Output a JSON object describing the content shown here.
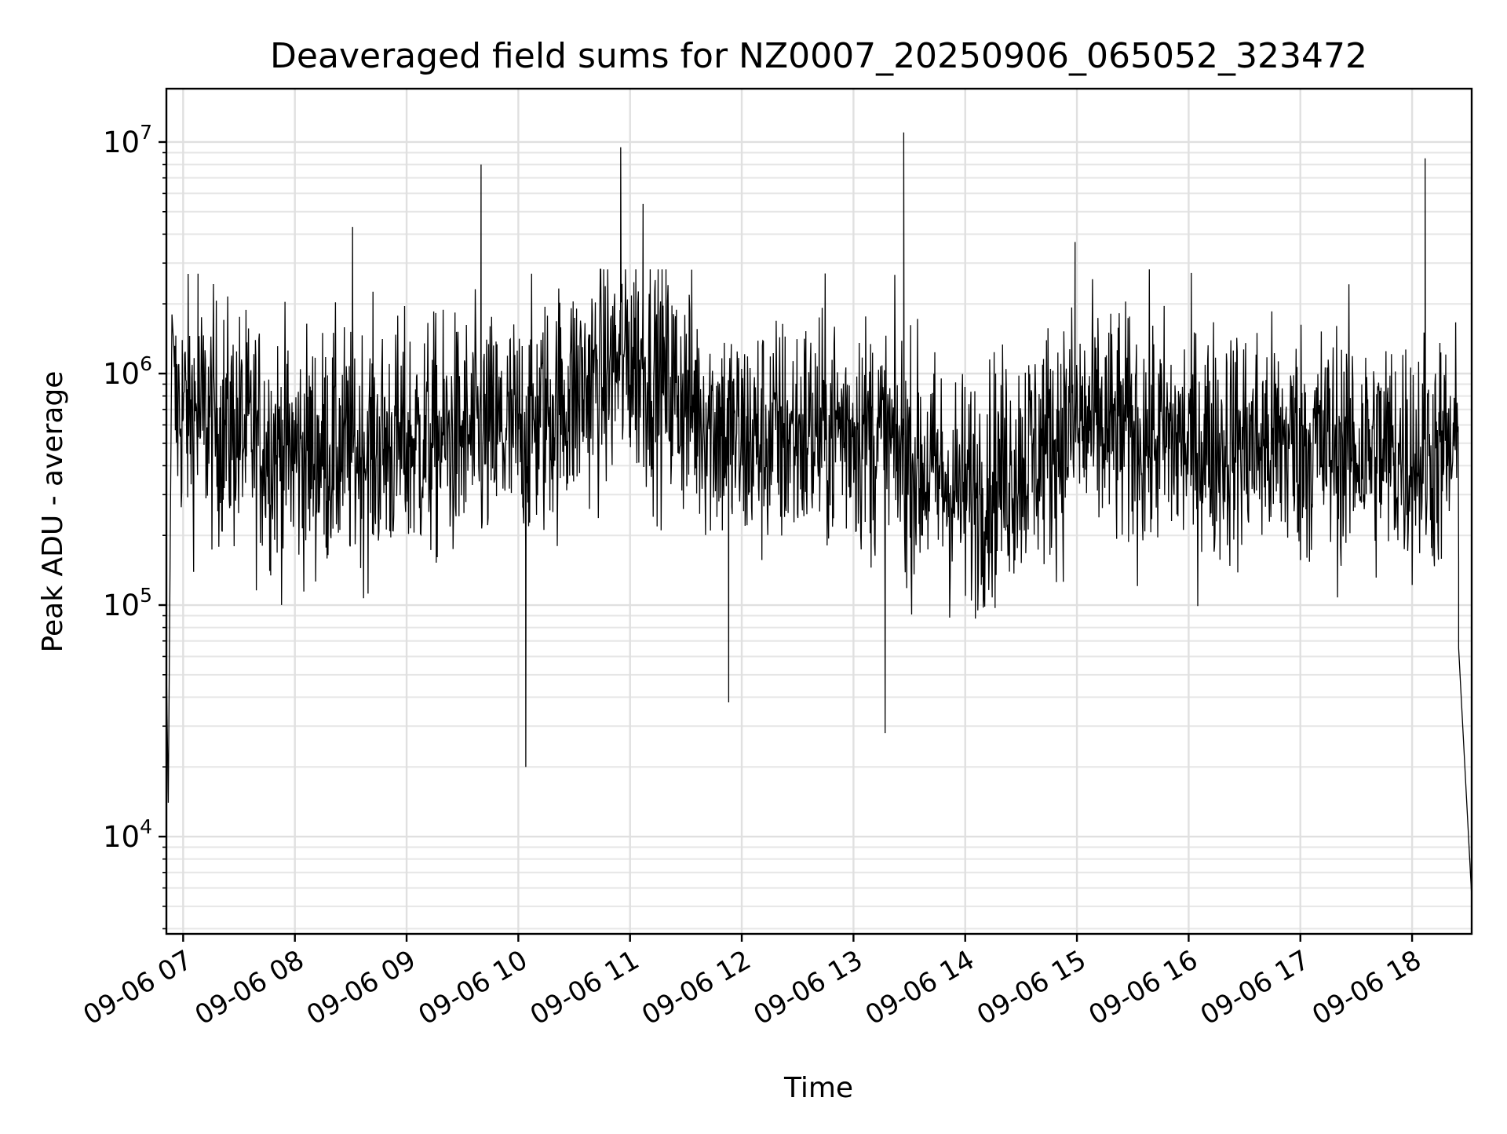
{
  "chart_data": {
    "type": "line",
    "title": "Deaveraged field sums for NZ0007_20250906_065052_323472",
    "xlabel": "Time",
    "ylabel": "Peak ADU - average",
    "yscale": "log",
    "ylim": [
      3800,
      17000000
    ],
    "xlim": [
      "2025-09-06 06:51",
      "2025-09-06 18:32"
    ],
    "grid": true,
    "line_color": "#000000",
    "x_tick_labels": [
      "09-06 07",
      "09-06 08",
      "09-06 09",
      "09-06 10",
      "09-06 11",
      "09-06 12",
      "09-06 13",
      "09-06 14",
      "09-06 15",
      "09-06 16",
      "09-06 17",
      "09-06 18"
    ],
    "y_ticks": [
      {
        "value": 10000,
        "base": "10",
        "exp": "4"
      },
      {
        "value": 100000,
        "base": "10",
        "exp": "5"
      },
      {
        "value": 1000000,
        "base": "10",
        "exp": "6"
      },
      {
        "value": 10000000,
        "base": "10",
        "exp": "7"
      }
    ],
    "notable_points": [
      {
        "x": "2025-09-06 06:51",
        "y": 55000
      },
      {
        "x": "2025-09-06 06:52",
        "y": 14000
      },
      {
        "x": "2025-09-06 06:54",
        "y": 1800000
      },
      {
        "x": "2025-09-06 07:08",
        "y": 2700000
      },
      {
        "x": "2025-09-06 08:31",
        "y": 4300000
      },
      {
        "x": "2025-09-06 09:40",
        "y": 8000000
      },
      {
        "x": "2025-09-06 10:04",
        "y": 20000
      },
      {
        "x": "2025-09-06 10:55",
        "y": 9500000
      },
      {
        "x": "2025-09-06 11:07",
        "y": 5400000
      },
      {
        "x": "2025-09-06 11:53",
        "y": 38000
      },
      {
        "x": "2025-09-06 13:17",
        "y": 28000
      },
      {
        "x": "2025-09-06 13:27",
        "y": 11000000
      },
      {
        "x": "2025-09-06 14:59",
        "y": 3700000
      },
      {
        "x": "2025-09-06 18:07",
        "y": 8500000
      },
      {
        "x": "2025-09-06 18:25",
        "y": 65000
      },
      {
        "x": "2025-09-06 18:32",
        "y": 5500
      }
    ],
    "series": [
      {
        "values_by_hour": [
          {
            "x": "2025-09-06 07:00",
            "y": 700000
          },
          {
            "x": "2025-09-06 08:00",
            "y": 450000
          },
          {
            "x": "2025-09-06 09:00",
            "y": 500000
          },
          {
            "x": "2025-09-06 10:00",
            "y": 550000
          },
          {
            "x": "2025-09-06 11:00",
            "y": 1200000
          },
          {
            "x": "2025-09-06 12:00",
            "y": 500000
          },
          {
            "x": "2025-09-06 13:00",
            "y": 600000
          },
          {
            "x": "2025-09-06 14:00",
            "y": 300000
          },
          {
            "x": "2025-09-06 15:00",
            "y": 600000
          },
          {
            "x": "2025-09-06 16:00",
            "y": 500000
          },
          {
            "x": "2025-09-06 17:00",
            "y": 500000
          },
          {
            "x": "2025-09-06 18:00",
            "y": 450000
          }
        ]
      }
    ]
  }
}
